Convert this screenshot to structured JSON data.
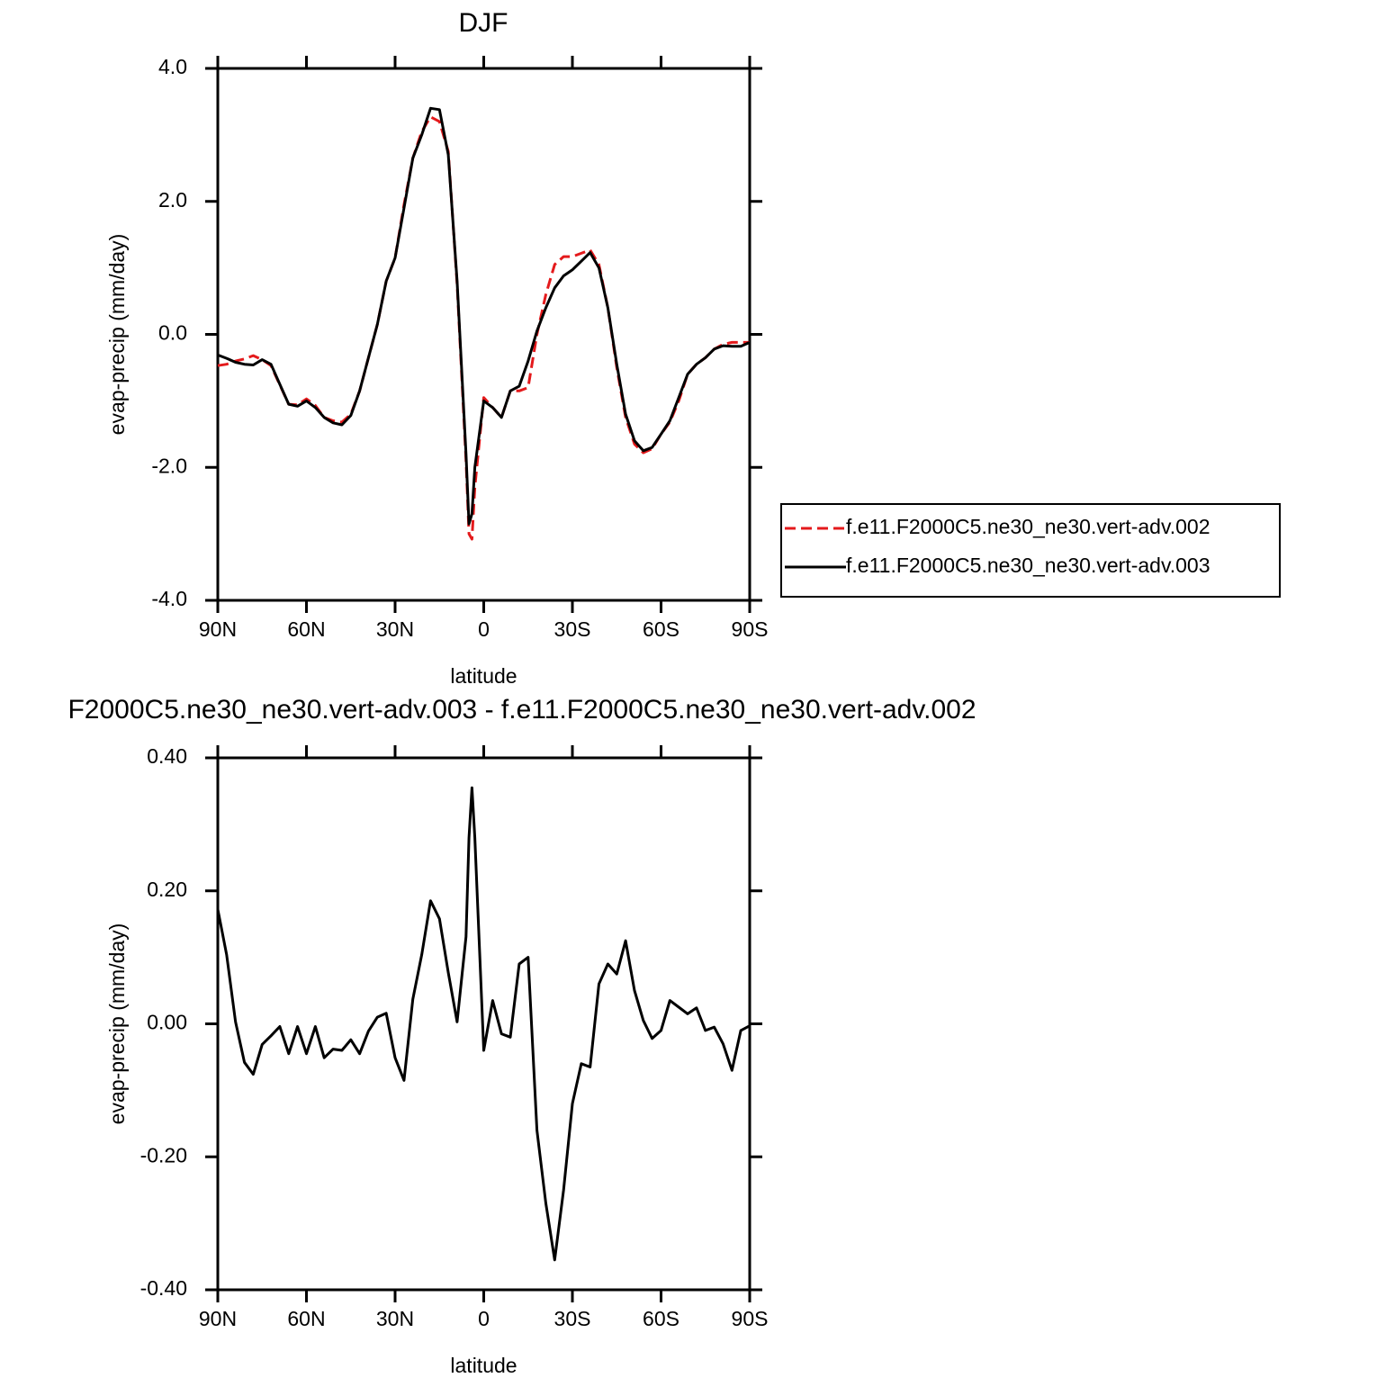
{
  "chart_data": [
    {
      "type": "line",
      "title": "DJF",
      "xlabel": "latitude",
      "ylabel": "evap-precip (mm/day)",
      "x": [
        90,
        87,
        84,
        81,
        78,
        75,
        72,
        69,
        66,
        63,
        60,
        57,
        54,
        51,
        48,
        45,
        42,
        39,
        36,
        33,
        30,
        27,
        24,
        21,
        18,
        15,
        12,
        9,
        6,
        5,
        4,
        3,
        0,
        -3,
        -6,
        -9,
        -12,
        -15,
        -18,
        -21,
        -24,
        -27,
        -30,
        -33,
        -36,
        -39,
        -42,
        -45,
        -48,
        -51,
        -54,
        -57,
        -60,
        -63,
        -66,
        -69,
        -72,
        -75,
        -78,
        -81,
        -84,
        -87,
        -90
      ],
      "series": [
        {
          "name": "f.e11.F2000C5.ne30_ne30.vert-adv.002",
          "color": "#e41a1c",
          "style": "dashed",
          "values": [
            -0.47,
            -0.45,
            -0.4,
            -0.37,
            -0.32,
            -0.38,
            -0.47,
            -0.76,
            -1.05,
            -1.06,
            -0.97,
            -1.07,
            -1.25,
            -1.3,
            -1.32,
            -1.2,
            -0.85,
            -0.35,
            0.15,
            0.8,
            1.15,
            1.95,
            2.65,
            3.05,
            3.27,
            3.2,
            2.75,
            0.75,
            -1.9,
            -3.0,
            -3.08,
            -2.3,
            -0.95,
            -1.1,
            -1.25,
            -0.85,
            -0.85,
            -0.8,
            0.0,
            0.6,
            1.05,
            1.17,
            1.17,
            1.22,
            1.27,
            1.05,
            0.4,
            -0.5,
            -1.25,
            -1.65,
            -1.78,
            -1.72,
            -1.5,
            -1.32,
            -1.0,
            -0.6,
            -0.45,
            -0.35,
            -0.22,
            -0.15,
            -0.12,
            -0.12,
            -0.12
          ]
        },
        {
          "name": "f.e11.F2000C5.ne30_ne30.vert-adv.003",
          "color": "#000000",
          "style": "solid",
          "values": [
            -0.31,
            -0.36,
            -0.42,
            -0.45,
            -0.46,
            -0.38,
            -0.45,
            -0.75,
            -1.05,
            -1.08,
            -1.0,
            -1.1,
            -1.25,
            -1.33,
            -1.36,
            -1.22,
            -0.85,
            -0.35,
            0.15,
            0.8,
            1.15,
            1.9,
            2.65,
            3.0,
            3.4,
            3.38,
            2.7,
            0.8,
            -1.8,
            -2.85,
            -2.7,
            -2.0,
            -1.0,
            -1.1,
            -1.25,
            -0.85,
            -0.78,
            -0.4,
            0.05,
            0.4,
            0.7,
            0.88,
            0.97,
            1.1,
            1.23,
            1.0,
            0.4,
            -0.45,
            -1.2,
            -1.6,
            -1.75,
            -1.7,
            -1.5,
            -1.3,
            -0.95,
            -0.6,
            -0.45,
            -0.35,
            -0.22,
            -0.17,
            -0.18,
            -0.18,
            -0.12
          ]
        }
      ],
      "xlim": [
        90,
        -90
      ],
      "xticks": [
        {
          "value": 90,
          "label": "90N"
        },
        {
          "value": 60,
          "label": "60N"
        },
        {
          "value": 30,
          "label": "30N"
        },
        0,
        {
          "value": -30,
          "label": "30S"
        },
        {
          "value": -60,
          "label": "60S"
        },
        {
          "value": -90,
          "label": "90S"
        }
      ],
      "ylim": [
        -4,
        4
      ],
      "yticks": [
        {
          "value": 4,
          "label": "4.0"
        },
        {
          "value": 2,
          "label": "2.0"
        },
        {
          "value": 0,
          "label": "0.0"
        },
        {
          "value": -2,
          "label": "-2.0"
        },
        {
          "value": -4,
          "label": "-4.0"
        }
      ],
      "legend": "right"
    },
    {
      "type": "line",
      "title": "F2000C5.ne30_ne30.vert-adv.003 - f.e11.F2000C5.ne30_ne30.vert-adv.002",
      "xlabel": "latitude",
      "ylabel": "evap-precip (mm/day)",
      "x": [
        90,
        87,
        84,
        81,
        78,
        75,
        72,
        69,
        66,
        63,
        60,
        57,
        54,
        51,
        48,
        45,
        42,
        39,
        36,
        33,
        30,
        27,
        24,
        21,
        18,
        15,
        12,
        9,
        6,
        5,
        4,
        3,
        0,
        -3,
        -6,
        -9,
        -12,
        -15,
        -18,
        -21,
        -24,
        -27,
        -30,
        -33,
        -36,
        -39,
        -42,
        -45,
        -48,
        -51,
        -54,
        -57,
        -60,
        -63,
        -66,
        -69,
        -72,
        -75,
        -78,
        -81,
        -84,
        -87,
        -90
      ],
      "values": [
        0.172,
        0.104,
        0.003,
        -0.058,
        -0.076,
        -0.031,
        -0.018,
        -0.004,
        -0.045,
        -0.004,
        -0.045,
        -0.004,
        -0.051,
        -0.038,
        -0.04,
        -0.024,
        -0.045,
        -0.011,
        0.01,
        0.016,
        -0.051,
        -0.085,
        0.037,
        0.104,
        0.185,
        0.158,
        0.077,
        0.003,
        0.131,
        0.28,
        0.355,
        0.28,
        -0.04,
        0.035,
        -0.015,
        -0.02,
        0.09,
        0.1,
        -0.16,
        -0.27,
        -0.355,
        -0.25,
        -0.12,
        -0.06,
        -0.065,
        0.06,
        0.09,
        0.075,
        0.125,
        0.05,
        0.005,
        -0.022,
        -0.01,
        0.035,
        0.025,
        0.015,
        0.024,
        -0.01,
        -0.005,
        -0.03,
        -0.07,
        -0.01,
        -0.003
      ],
      "color": "#000000",
      "xlim": [
        90,
        -90
      ],
      "xticks": [
        {
          "value": 90,
          "label": "90N"
        },
        {
          "value": 60,
          "label": "60N"
        },
        {
          "value": 30,
          "label": "30N"
        },
        0,
        {
          "value": -30,
          "label": "30S"
        },
        {
          "value": -60,
          "label": "60S"
        },
        {
          "value": -90,
          "label": "90S"
        }
      ],
      "ylim": [
        -0.4,
        0.4
      ],
      "yticks": [
        {
          "value": 0.4,
          "label": "0.40"
        },
        {
          "value": 0.2,
          "label": "0.20"
        },
        {
          "value": 0,
          "label": "0.00"
        },
        {
          "value": -0.2,
          "label": "-0.20"
        },
        {
          "value": -0.4,
          "label": "-0.40"
        }
      ]
    }
  ]
}
